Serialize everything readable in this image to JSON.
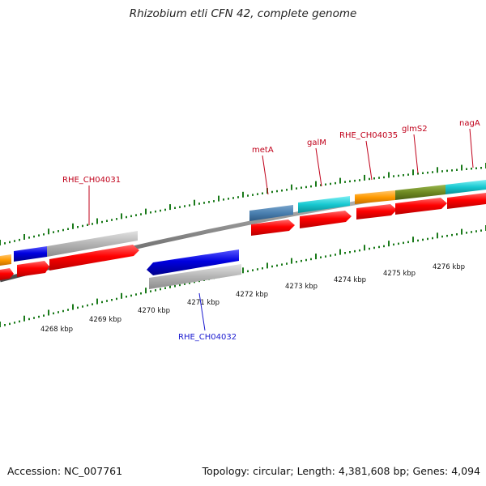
{
  "header": {
    "title": "Rhizobium etli CFN 42, complete genome"
  },
  "footer": {
    "accession": "Accession: NC_007761",
    "summary": "Topology: circular; Length: 4,381,608 bp; Genes: 4,094"
  },
  "colors": {
    "cds": "#ff0000",
    "gene_blue": "#0000e0",
    "gene_grey": "#b4b4b4",
    "gene_steelblue": "#4a7fb0",
    "gene_cyan": "#18c8d0",
    "gene_orange": "#ff9a00",
    "gene_olive": "#6f8a22",
    "backbone": "#8a8a8a",
    "tick": "#1a7a1a",
    "label_fwd": "#c0001a",
    "label_rev": "#1a1ad0"
  },
  "ruler": {
    "unit": "kbp",
    "labels": [
      "4268 kbp",
      "4269 kbp",
      "4270 kbp",
      "4271 kbp",
      "4272 kbp",
      "4273 kbp",
      "4274 kbp",
      "4275 kbp",
      "4276 kbp"
    ]
  },
  "gene_labels": {
    "forward": [
      "RHE_CH04031",
      "metA",
      "galM",
      "RHE_CH04035",
      "glmS2",
      "nagA"
    ],
    "reverse": [
      "RHE_CH04032"
    ]
  }
}
